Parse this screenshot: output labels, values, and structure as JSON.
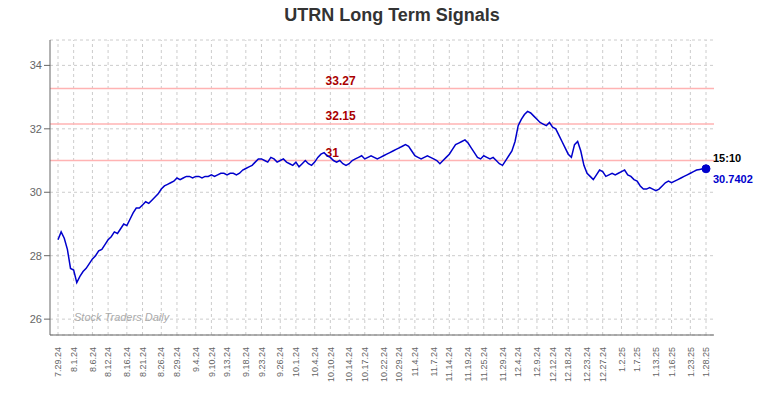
{
  "chart_data": {
    "type": "line",
    "title": "UTRN Long Term Signals",
    "categories": [
      "7.29.24",
      null,
      null,
      null,
      null,
      "8.1.24",
      null,
      null,
      null,
      null,
      null,
      "8.6.24",
      null,
      null,
      null,
      null,
      "8.12.24",
      null,
      null,
      null,
      null,
      null,
      "8.16.24",
      null,
      null,
      null,
      null,
      "8.21.24",
      null,
      null,
      null,
      null,
      null,
      "8.26.24",
      null,
      null,
      null,
      null,
      "8.29.24",
      null,
      null,
      null,
      null,
      null,
      "9.4.24",
      null,
      null,
      null,
      null,
      "9.10.24",
      null,
      null,
      null,
      null,
      "9.13.24",
      null,
      null,
      null,
      null,
      null,
      "9.18.24",
      null,
      null,
      null,
      null,
      "9.23.24",
      null,
      null,
      null,
      null,
      null,
      "9.26.24",
      null,
      null,
      null,
      null,
      "10.1.24",
      null,
      null,
      null,
      null,
      null,
      "10.4.24",
      null,
      null,
      null,
      null,
      "10.10.24",
      null,
      null,
      null,
      null,
      null,
      "10.14.24",
      null,
      null,
      null,
      null,
      "10.17.24",
      null,
      null,
      null,
      null,
      null,
      "10.22.24",
      null,
      null,
      null,
      null,
      "10.29.24",
      null,
      null,
      null,
      null,
      "11.4.24",
      null,
      null,
      null,
      null,
      null,
      "11.7.24",
      null,
      null,
      null,
      null,
      "11.14.24",
      null,
      null,
      null,
      null,
      null,
      "11.19.24",
      null,
      null,
      null,
      null,
      "11.25.24",
      null,
      null,
      null,
      null,
      null,
      "11.29.24",
      null,
      null,
      null,
      null,
      "12.4.24",
      null,
      null,
      null,
      null,
      null,
      "12.9.24",
      null,
      null,
      null,
      null,
      "12.12.24",
      null,
      null,
      null,
      null,
      "12.18.24",
      null,
      null,
      null,
      null,
      null,
      "12.23.24",
      null,
      null,
      null,
      null,
      "12.27.24",
      null,
      null,
      null,
      null,
      null,
      "1.2.25",
      null,
      null,
      null,
      null,
      "1.7.25",
      null,
      null,
      null,
      null,
      null,
      "1.13.25",
      null,
      null,
      null,
      null,
      "1.16.25",
      null,
      null,
      null,
      null,
      null,
      "1.23.25",
      null,
      null,
      null,
      null,
      "1.28.25"
    ],
    "values": [
      28.5,
      28.75,
      28.55,
      28.2,
      27.6,
      27.55,
      27.15,
      27.35,
      27.5,
      27.6,
      27.75,
      27.9,
      28.0,
      28.15,
      28.2,
      28.35,
      28.5,
      28.6,
      28.75,
      28.7,
      28.85,
      29.0,
      28.95,
      29.15,
      29.35,
      29.5,
      29.5,
      29.6,
      29.7,
      29.65,
      29.75,
      29.85,
      29.95,
      30.1,
      30.2,
      30.25,
      30.3,
      30.35,
      30.45,
      30.4,
      30.45,
      30.5,
      30.5,
      30.45,
      30.5,
      30.5,
      30.45,
      30.5,
      30.5,
      30.55,
      30.5,
      30.55,
      30.6,
      30.6,
      30.55,
      30.6,
      30.6,
      30.55,
      30.6,
      30.7,
      30.75,
      30.8,
      30.85,
      30.95,
      31.05,
      31.05,
      31.0,
      30.95,
      31.1,
      31.05,
      30.95,
      31.0,
      31.05,
      30.95,
      30.9,
      30.85,
      30.95,
      30.8,
      30.9,
      31.0,
      30.9,
      30.85,
      30.95,
      31.1,
      31.2,
      31.25,
      31.15,
      31.1,
      31.0,
      30.95,
      31.0,
      30.9,
      30.85,
      30.9,
      31.0,
      31.05,
      31.1,
      31.15,
      31.05,
      31.1,
      31.15,
      31.1,
      31.05,
      31.1,
      31.15,
      31.2,
      31.25,
      31.3,
      31.35,
      31.4,
      31.45,
      31.5,
      31.45,
      31.3,
      31.15,
      31.1,
      31.05,
      31.1,
      31.15,
      31.1,
      31.05,
      31.0,
      30.9,
      31.0,
      31.1,
      31.2,
      31.35,
      31.5,
      31.55,
      31.6,
      31.65,
      31.55,
      31.4,
      31.25,
      31.1,
      31.05,
      31.15,
      31.1,
      31.05,
      31.1,
      31.0,
      30.9,
      30.85,
      31.0,
      31.15,
      31.3,
      31.6,
      32.1,
      32.3,
      32.45,
      32.55,
      32.5,
      32.4,
      32.3,
      32.2,
      32.15,
      32.1,
      32.2,
      32.05,
      32.0,
      31.8,
      31.6,
      31.4,
      31.2,
      31.1,
      31.5,
      31.6,
      31.3,
      30.85,
      30.6,
      30.5,
      30.4,
      30.55,
      30.7,
      30.65,
      30.5,
      30.55,
      30.6,
      30.55,
      30.6,
      30.65,
      30.7,
      30.55,
      30.5,
      30.4,
      30.35,
      30.2,
      30.1,
      30.1,
      30.15,
      30.1,
      30.05,
      30.1,
      30.2,
      30.3,
      30.35,
      30.3,
      30.35,
      30.4,
      30.45,
      30.5,
      30.55,
      30.6,
      30.65,
      30.7,
      30.72,
      30.74,
      30.7402
    ],
    "color": "#0000cc",
    "ylim": [
      25.5,
      34.8
    ],
    "yticks": [
      26,
      28,
      30,
      32,
      34
    ],
    "grid": true,
    "reference_lines": [
      {
        "value": 33.27,
        "label": "33.27",
        "color": "#ffb3b3",
        "label_color": "#aa0000"
      },
      {
        "value": 32.15,
        "label": "32.15",
        "color": "#ffb3b3",
        "label_color": "#aa0000"
      },
      {
        "value": 31.0,
        "label": "31",
        "color": "#ffb3b3",
        "label_color": "#aa0000"
      }
    ],
    "annotations": [
      {
        "text": "Stock Traders Daily",
        "color": "#aaaaaa"
      },
      {
        "text": "15:10",
        "color": "#000000"
      },
      {
        "text": "30.7402",
        "color": "#0000cc"
      }
    ]
  }
}
